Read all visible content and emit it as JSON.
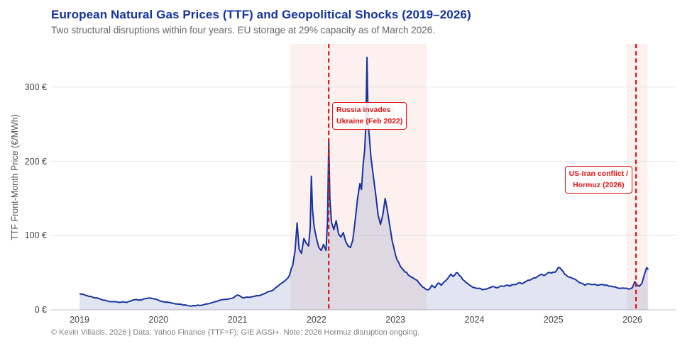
{
  "header": {
    "title": "European Natural Gas Prices (TTF) and Geopolitical Shocks (2019–2026)",
    "subtitle": "Two structural disruptions within four years. EU storage at 29% capacity as of March 2026."
  },
  "footer": {
    "credit": "© Kevin Villacis, 2026 | Data: Yahoo Finance (TTF=F); GIE AGSI+. Note: 2026 Hormuz disruption ongoing."
  },
  "colors": {
    "title_blue": "#16339e",
    "line_blue": "#17349f",
    "area_fill": "rgba(21,51,158,0.13)",
    "band_pink": "#fcf1ee",
    "event_red": "#dd1414",
    "grid_gray": "#e4e4e4",
    "axis_gray": "#cfcfcf",
    "tick_text": "#444444"
  },
  "chart_data": {
    "type": "area",
    "title": "European Natural Gas Prices (TTF) and Geopolitical Shocks (2019–2026)",
    "subtitle": "Two structural disruptions within four years. EU storage at 29% capacity as of March 2026.",
    "xlabel": "",
    "ylabel": "TTF Front-Month Price (€/MWh)",
    "x_ticks": [
      "2019",
      "2020",
      "2021",
      "2022",
      "2023",
      "2024",
      "2025",
      "2026"
    ],
    "y_ticks": [
      {
        "value": 0,
        "label": "0 €"
      },
      {
        "value": 100,
        "label": "100 €"
      },
      {
        "value": 200,
        "label": "200 €"
      },
      {
        "value": 300,
        "label": "300 €"
      }
    ],
    "ylim": [
      0,
      358
    ],
    "xlim": [
      2018.64,
      2026.55
    ],
    "grid": "horizontal",
    "legend": "none",
    "shaded_bands": [
      {
        "from": 2021.67,
        "to": 2023.4
      },
      {
        "from": 2025.93,
        "to": 2026.19
      }
    ],
    "events": [
      {
        "year": 2022.155,
        "label_lines": [
          "Russia invades",
          "Ukraine (Feb 2022)"
        ]
      },
      {
        "year": 2026.045,
        "label_lines": [
          "US-Iran conflict /",
          "Hormuz (2026)"
        ]
      }
    ],
    "series": [
      {
        "name": "TTF Front-Month Price (€/MWh)",
        "points": [
          [
            2019.0,
            22
          ],
          [
            2019.05,
            21
          ],
          [
            2019.1,
            19
          ],
          [
            2019.15,
            18
          ],
          [
            2019.2,
            16
          ],
          [
            2019.25,
            15
          ],
          [
            2019.3,
            13
          ],
          [
            2019.35,
            12
          ],
          [
            2019.42,
            11
          ],
          [
            2019.5,
            10
          ],
          [
            2019.55,
            11
          ],
          [
            2019.6,
            10
          ],
          [
            2019.67,
            13
          ],
          [
            2019.72,
            14
          ],
          [
            2019.78,
            13
          ],
          [
            2019.83,
            15
          ],
          [
            2019.88,
            16
          ],
          [
            2019.93,
            15
          ],
          [
            2020.0,
            13
          ],
          [
            2020.06,
            11
          ],
          [
            2020.12,
            10
          ],
          [
            2020.18,
            9
          ],
          [
            2020.24,
            8
          ],
          [
            2020.3,
            7
          ],
          [
            2020.36,
            6
          ],
          [
            2020.42,
            5
          ],
          [
            2020.48,
            6
          ],
          [
            2020.54,
            6
          ],
          [
            2020.6,
            8
          ],
          [
            2020.66,
            9
          ],
          [
            2020.72,
            11
          ],
          [
            2020.78,
            13
          ],
          [
            2020.84,
            14
          ],
          [
            2020.9,
            15
          ],
          [
            2020.95,
            16
          ],
          [
            2021.0,
            20
          ],
          [
            2021.04,
            18
          ],
          [
            2021.08,
            16
          ],
          [
            2021.14,
            17
          ],
          [
            2021.2,
            18
          ],
          [
            2021.26,
            19
          ],
          [
            2021.32,
            21
          ],
          [
            2021.38,
            24
          ],
          [
            2021.44,
            26
          ],
          [
            2021.5,
            31
          ],
          [
            2021.56,
            36
          ],
          [
            2021.62,
            41
          ],
          [
            2021.66,
            47
          ],
          [
            2021.7,
            60
          ],
          [
            2021.73,
            80
          ],
          [
            2021.755,
            117
          ],
          [
            2021.78,
            82
          ],
          [
            2021.81,
            76
          ],
          [
            2021.84,
            96
          ],
          [
            2021.87,
            90
          ],
          [
            2021.9,
            86
          ],
          [
            2021.92,
            110
          ],
          [
            2021.935,
            180
          ],
          [
            2021.95,
            135
          ],
          [
            2021.97,
            112
          ],
          [
            2022.0,
            96
          ],
          [
            2022.03,
            84
          ],
          [
            2022.06,
            80
          ],
          [
            2022.09,
            88
          ],
          [
            2022.12,
            80
          ],
          [
            2022.14,
            120
          ],
          [
            2022.155,
            227
          ],
          [
            2022.17,
            150
          ],
          [
            2022.19,
            118
          ],
          [
            2022.22,
            108
          ],
          [
            2022.25,
            120
          ],
          [
            2022.28,
            102
          ],
          [
            2022.31,
            98
          ],
          [
            2022.34,
            104
          ],
          [
            2022.37,
            92
          ],
          [
            2022.4,
            86
          ],
          [
            2022.43,
            84
          ],
          [
            2022.46,
            94
          ],
          [
            2022.49,
            120
          ],
          [
            2022.52,
            150
          ],
          [
            2022.55,
            170
          ],
          [
            2022.57,
            162
          ],
          [
            2022.59,
            195
          ],
          [
            2022.61,
            215
          ],
          [
            2022.625,
            250
          ],
          [
            2022.64,
            340
          ],
          [
            2022.655,
            250
          ],
          [
            2022.67,
            232
          ],
          [
            2022.69,
            205
          ],
          [
            2022.72,
            180
          ],
          [
            2022.75,
            155
          ],
          [
            2022.78,
            128
          ],
          [
            2022.81,
            115
          ],
          [
            2022.84,
            128
          ],
          [
            2022.87,
            150
          ],
          [
            2022.9,
            132
          ],
          [
            2022.93,
            112
          ],
          [
            2022.96,
            92
          ],
          [
            2023.0,
            74
          ],
          [
            2023.04,
            64
          ],
          [
            2023.08,
            56
          ],
          [
            2023.12,
            51
          ],
          [
            2023.16,
            47
          ],
          [
            2023.2,
            44
          ],
          [
            2023.25,
            41
          ],
          [
            2023.3,
            36
          ],
          [
            2023.34,
            31
          ],
          [
            2023.38,
            28
          ],
          [
            2023.42,
            27
          ],
          [
            2023.46,
            33
          ],
          [
            2023.5,
            30
          ],
          [
            2023.54,
            36
          ],
          [
            2023.58,
            33
          ],
          [
            2023.62,
            38
          ],
          [
            2023.66,
            42
          ],
          [
            2023.7,
            48
          ],
          [
            2023.73,
            45
          ],
          [
            2023.77,
            50
          ],
          [
            2023.81,
            46
          ],
          [
            2023.85,
            41
          ],
          [
            2023.89,
            37
          ],
          [
            2023.94,
            33
          ],
          [
            2024.0,
            30
          ],
          [
            2024.05,
            29
          ],
          [
            2024.1,
            27
          ],
          [
            2024.15,
            28
          ],
          [
            2024.2,
            30
          ],
          [
            2024.25,
            31
          ],
          [
            2024.3,
            30
          ],
          [
            2024.35,
            32
          ],
          [
            2024.4,
            33
          ],
          [
            2024.45,
            32
          ],
          [
            2024.5,
            34
          ],
          [
            2024.55,
            36
          ],
          [
            2024.6,
            35
          ],
          [
            2024.65,
            38
          ],
          [
            2024.7,
            40
          ],
          [
            2024.75,
            43
          ],
          [
            2024.8,
            45
          ],
          [
            2024.85,
            48
          ],
          [
            2024.88,
            46
          ],
          [
            2024.92,
            49
          ],
          [
            2024.96,
            50
          ],
          [
            2025.0,
            51
          ],
          [
            2025.04,
            53
          ],
          [
            2025.08,
            57
          ],
          [
            2025.12,
            52
          ],
          [
            2025.16,
            47
          ],
          [
            2025.2,
            44
          ],
          [
            2025.25,
            42
          ],
          [
            2025.3,
            39
          ],
          [
            2025.35,
            36
          ],
          [
            2025.4,
            33
          ],
          [
            2025.45,
            35
          ],
          [
            2025.5,
            34
          ],
          [
            2025.55,
            33
          ],
          [
            2025.6,
            34
          ],
          [
            2025.65,
            33
          ],
          [
            2025.7,
            32
          ],
          [
            2025.75,
            31
          ],
          [
            2025.8,
            30
          ],
          [
            2025.85,
            29
          ],
          [
            2025.9,
            29
          ],
          [
            2025.95,
            28
          ],
          [
            2026.0,
            30
          ],
          [
            2026.03,
            38
          ],
          [
            2026.06,
            33
          ],
          [
            2026.09,
            32
          ],
          [
            2026.12,
            36
          ],
          [
            2026.15,
            47
          ],
          [
            2026.18,
            57
          ],
          [
            2026.2,
            54
          ]
        ]
      }
    ]
  }
}
